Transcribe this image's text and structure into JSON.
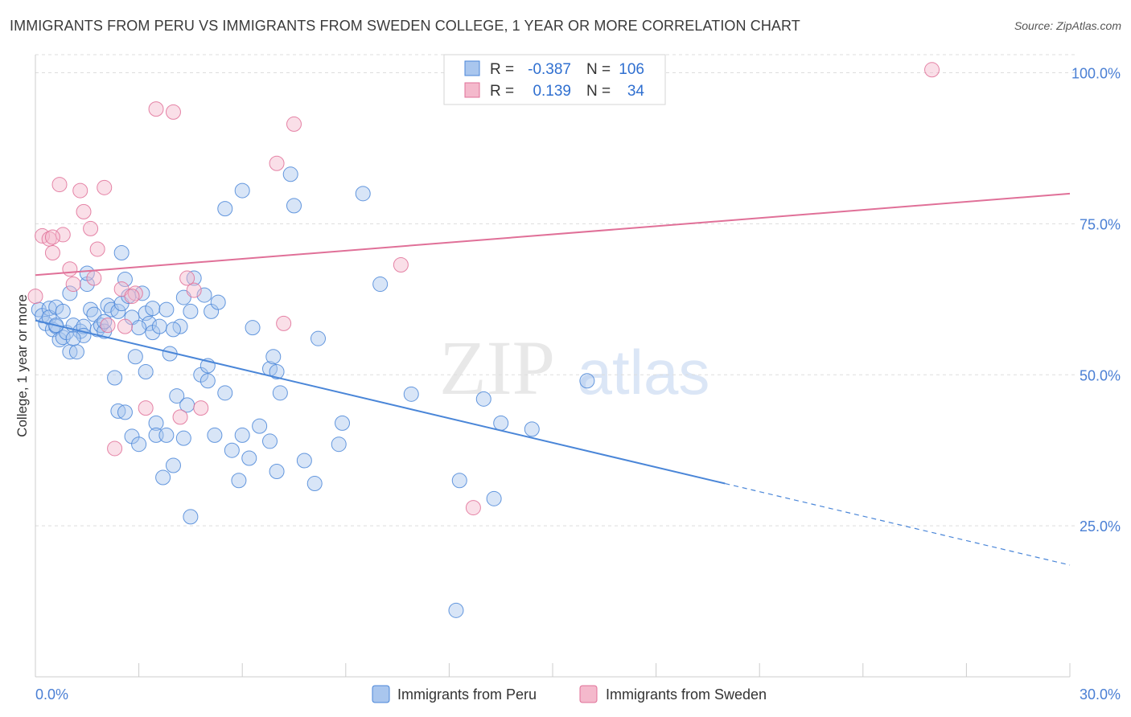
{
  "title": "IMMIGRANTS FROM PERU VS IMMIGRANTS FROM SWEDEN COLLEGE, 1 YEAR OR MORE CORRELATION CHART",
  "source": "Source: ZipAtlas.com",
  "watermark": {
    "zip": "ZIP",
    "atlas": "atlas"
  },
  "colors": {
    "peru": "#4a86d8",
    "peru_fill": "#a9c6ee",
    "sweden": "#e07098",
    "sweden_fill": "#f4b9cc",
    "axis_text": "#4a7fd4",
    "grid": "#dddddd"
  },
  "legend": {
    "r_label": "R =",
    "n_label": "N =",
    "peru": {
      "r": "-0.387",
      "n": "106"
    },
    "sweden": {
      "r": "0.139",
      "n": "34"
    }
  },
  "chart_data": {
    "type": "scatter",
    "title": "IMMIGRANTS FROM PERU VS IMMIGRANTS FROM SWEDEN COLLEGE, 1 YEAR OR MORE CORRELATION CHART",
    "xlabel": "",
    "ylabel": "College, 1 year or more",
    "xlim": [
      0,
      30
    ],
    "ylim": [
      0,
      103
    ],
    "x_tick_labels": [
      "0.0%",
      "30.0%"
    ],
    "y_ticks": [
      25,
      50,
      75,
      100
    ],
    "y_tick_labels": [
      "25.0%",
      "50.0%",
      "75.0%",
      "100.0%"
    ],
    "grid": true,
    "legend_position": "top-center",
    "series": [
      {
        "name": "Immigrants from Peru",
        "color": "#4a86d8",
        "trend": {
          "x0": 0,
          "y0": 59.0,
          "x1": 20.0,
          "y1": 32.0,
          "dashed_to_x": 30.0,
          "dashed_to_y": 18.5
        },
        "points": [
          [
            0.1,
            60.8
          ],
          [
            0.2,
            59.8
          ],
          [
            0.3,
            58.5
          ],
          [
            0.4,
            61.0
          ],
          [
            0.4,
            59.5
          ],
          [
            0.5,
            57.5
          ],
          [
            0.6,
            61.2
          ],
          [
            0.6,
            58.0
          ],
          [
            0.7,
            55.8
          ],
          [
            0.8,
            60.5
          ],
          [
            0.8,
            56.2
          ],
          [
            0.9,
            57.0
          ],
          [
            1.0,
            53.8
          ],
          [
            1.0,
            63.5
          ],
          [
            1.1,
            58.2
          ],
          [
            1.2,
            53.8
          ],
          [
            1.3,
            57.2
          ],
          [
            1.4,
            58.0
          ],
          [
            1.4,
            56.5
          ],
          [
            1.5,
            65.0
          ],
          [
            1.5,
            66.8
          ],
          [
            1.6,
            60.8
          ],
          [
            1.7,
            60.0
          ],
          [
            1.8,
            57.5
          ],
          [
            1.9,
            58.2
          ],
          [
            2.0,
            57.2
          ],
          [
            2.1,
            61.5
          ],
          [
            2.2,
            60.8
          ],
          [
            2.3,
            49.5
          ],
          [
            2.4,
            60.5
          ],
          [
            2.4,
            44.0
          ],
          [
            2.5,
            61.8
          ],
          [
            2.5,
            70.2
          ],
          [
            2.6,
            65.8
          ],
          [
            2.6,
            43.8
          ],
          [
            2.7,
            63.0
          ],
          [
            2.8,
            59.5
          ],
          [
            2.8,
            39.8
          ],
          [
            2.9,
            53.0
          ],
          [
            3.0,
            38.5
          ],
          [
            3.1,
            63.5
          ],
          [
            3.2,
            60.2
          ],
          [
            3.2,
            50.5
          ],
          [
            3.3,
            58.5
          ],
          [
            3.4,
            61.0
          ],
          [
            3.4,
            57.0
          ],
          [
            3.5,
            42.0
          ],
          [
            3.5,
            40.0
          ],
          [
            3.6,
            58.0
          ],
          [
            3.7,
            33.0
          ],
          [
            3.8,
            60.8
          ],
          [
            3.8,
            40.0
          ],
          [
            3.9,
            53.5
          ],
          [
            4.0,
            35.0
          ],
          [
            4.1,
            46.5
          ],
          [
            4.2,
            58.0
          ],
          [
            4.3,
            62.8
          ],
          [
            4.3,
            39.5
          ],
          [
            4.4,
            45.0
          ],
          [
            4.5,
            60.5
          ],
          [
            4.5,
            26.5
          ],
          [
            4.6,
            66.0
          ],
          [
            4.8,
            50.0
          ],
          [
            4.9,
            63.2
          ],
          [
            5.0,
            51.5
          ],
          [
            5.0,
            49.0
          ],
          [
            5.1,
            60.5
          ],
          [
            5.2,
            40.0
          ],
          [
            5.3,
            62.0
          ],
          [
            5.5,
            77.5
          ],
          [
            5.5,
            47.0
          ],
          [
            5.7,
            37.5
          ],
          [
            5.9,
            32.5
          ],
          [
            6.0,
            80.5
          ],
          [
            6.0,
            40.0
          ],
          [
            6.2,
            36.2
          ],
          [
            6.3,
            57.8
          ],
          [
            6.5,
            41.5
          ],
          [
            6.8,
            51.0
          ],
          [
            6.8,
            39.0
          ],
          [
            6.9,
            53.0
          ],
          [
            7.0,
            34.0
          ],
          [
            7.0,
            50.5
          ],
          [
            7.1,
            47.0
          ],
          [
            7.4,
            83.2
          ],
          [
            7.5,
            78.0
          ],
          [
            7.8,
            35.8
          ],
          [
            8.1,
            32.0
          ],
          [
            8.2,
            56.0
          ],
          [
            8.8,
            38.5
          ],
          [
            8.9,
            42.0
          ],
          [
            9.5,
            80.0
          ],
          [
            10.0,
            65.0
          ],
          [
            10.9,
            46.8
          ],
          [
            12.2,
            11.0
          ],
          [
            12.3,
            32.5
          ],
          [
            13.0,
            46.0
          ],
          [
            13.3,
            29.5
          ],
          [
            13.5,
            42.0
          ],
          [
            14.4,
            41.0
          ],
          [
            16.0,
            49.0
          ],
          [
            0.6,
            58.2
          ],
          [
            1.1,
            56.0
          ],
          [
            2.0,
            58.8
          ],
          [
            3.0,
            57.8
          ],
          [
            4.0,
            57.5
          ]
        ]
      },
      {
        "name": "Immigrants from Sweden",
        "color": "#e07098",
        "trend": {
          "x0": 0,
          "y0": 66.5,
          "x1": 30,
          "y1": 80.0
        },
        "points": [
          [
            0.0,
            63.0
          ],
          [
            0.2,
            73.0
          ],
          [
            0.4,
            72.5
          ],
          [
            0.5,
            70.2
          ],
          [
            0.7,
            81.5
          ],
          [
            0.8,
            73.2
          ],
          [
            1.0,
            67.5
          ],
          [
            1.1,
            65.0
          ],
          [
            1.3,
            80.5
          ],
          [
            1.4,
            77.0
          ],
          [
            1.6,
            74.2
          ],
          [
            1.8,
            70.8
          ],
          [
            2.0,
            81.0
          ],
          [
            2.1,
            58.2
          ],
          [
            2.3,
            37.8
          ],
          [
            2.5,
            64.2
          ],
          [
            2.6,
            58.0
          ],
          [
            2.9,
            63.5
          ],
          [
            3.2,
            44.5
          ],
          [
            3.5,
            94.0
          ],
          [
            4.0,
            93.5
          ],
          [
            4.2,
            43.0
          ],
          [
            4.4,
            66.0
          ],
          [
            4.6,
            64.0
          ],
          [
            4.8,
            44.5
          ],
          [
            7.0,
            85.0
          ],
          [
            7.2,
            58.5
          ],
          [
            7.5,
            91.5
          ],
          [
            10.6,
            68.2
          ],
          [
            12.7,
            28.0
          ],
          [
            26.0,
            100.5
          ],
          [
            1.7,
            66.0
          ],
          [
            2.8,
            63.0
          ],
          [
            0.5,
            72.8
          ]
        ]
      }
    ]
  },
  "bottom_legend": {
    "peru": "Immigrants from Peru",
    "sweden": "Immigrants from Sweden"
  }
}
